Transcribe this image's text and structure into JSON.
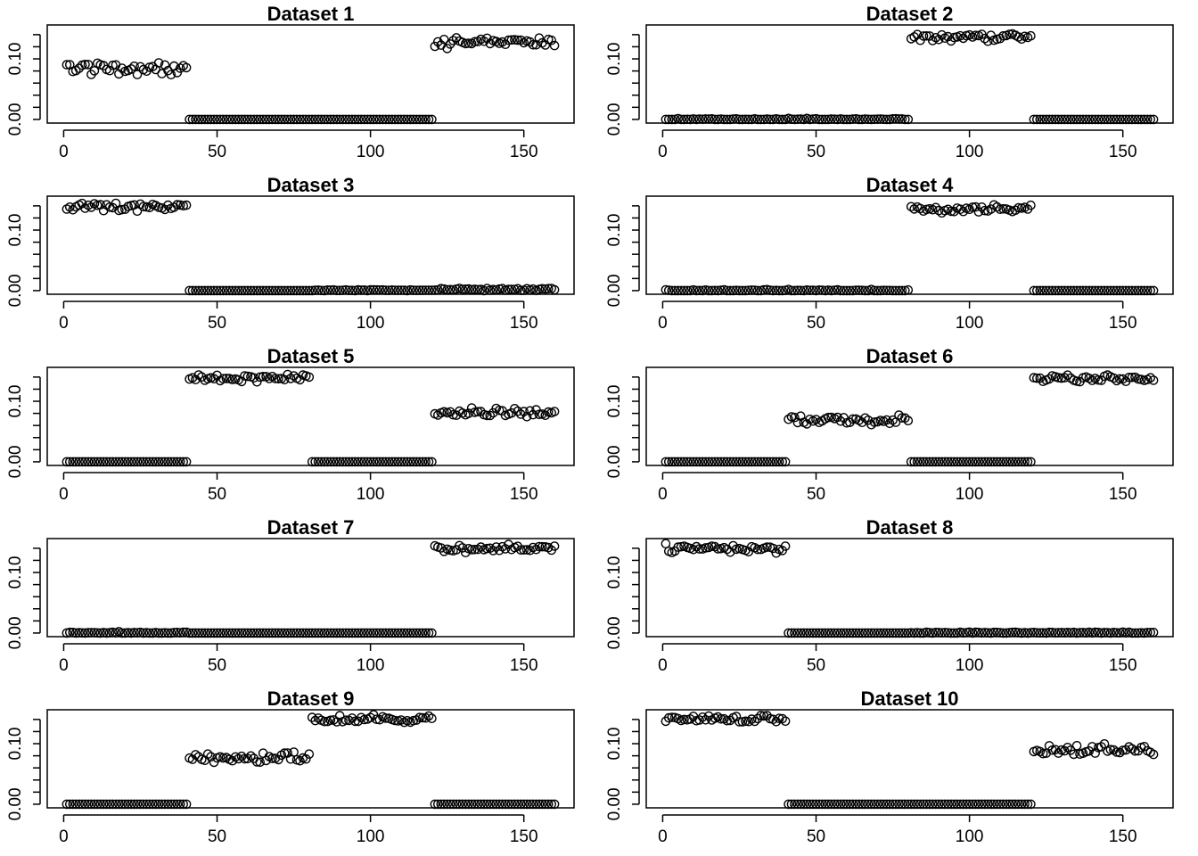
{
  "figure": {
    "background": "#ffffff",
    "marker_color": "#000000"
  },
  "chart_data": [
    {
      "type": "scatter",
      "title": "Dataset 1",
      "x": {
        "from": 1,
        "to": 160
      },
      "xlim": [
        1,
        160
      ],
      "xticks": [
        0,
        50,
        100,
        150
      ],
      "ylim": [
        0,
        0.15
      ],
      "yticks": [
        "0.00",
        "0.10"
      ],
      "segments": [
        {
          "x": [
            1,
            40
          ],
          "y": 0.085,
          "noise": 0.006
        },
        {
          "x": [
            41,
            120
          ],
          "y": 0.0,
          "noise": 0
        },
        {
          "x": [
            121,
            160
          ],
          "y": 0.128,
          "noise": 0.004
        }
      ]
    },
    {
      "type": "scatter",
      "title": "Dataset 2",
      "x": {
        "from": 1,
        "to": 160
      },
      "xlim": [
        1,
        160
      ],
      "xticks": [
        0,
        50,
        100,
        150
      ],
      "ylim": [
        0,
        0.15
      ],
      "yticks": [
        "0.00",
        "0.10"
      ],
      "segments": [
        {
          "x": [
            1,
            80
          ],
          "y": 0.0,
          "noise": 0.0008
        },
        {
          "x": [
            81,
            120
          ],
          "y": 0.136,
          "noise": 0.003
        },
        {
          "x": [
            121,
            160
          ],
          "y": 0.0,
          "noise": 0
        }
      ]
    },
    {
      "type": "scatter",
      "title": "Dataset 3",
      "x": {
        "from": 1,
        "to": 160
      },
      "xlim": [
        1,
        160
      ],
      "xticks": [
        0,
        50,
        100,
        150
      ],
      "ylim": [
        0,
        0.15
      ],
      "yticks": [
        "0.00",
        "0.10"
      ],
      "segments": [
        {
          "x": [
            1,
            40
          ],
          "y": 0.138,
          "noise": 0.003
        },
        {
          "x": [
            41,
            80
          ],
          "y": 0.0,
          "noise": 0
        },
        {
          "x": [
            81,
            120
          ],
          "y": 0.0005,
          "noise": 0.0004
        },
        {
          "x": [
            121,
            160
          ],
          "y": 0.002,
          "noise": 0.0012
        }
      ]
    },
    {
      "type": "scatter",
      "title": "Dataset 4",
      "x": {
        "from": 1,
        "to": 160
      },
      "xlim": [
        1,
        160
      ],
      "xticks": [
        0,
        50,
        100,
        150
      ],
      "ylim": [
        0,
        0.15
      ],
      "yticks": [
        "0.00",
        "0.10"
      ],
      "segments": [
        {
          "x": [
            1,
            80
          ],
          "y": 0.0,
          "noise": 0.0008
        },
        {
          "x": [
            81,
            120
          ],
          "y": 0.136,
          "noise": 0.003
        },
        {
          "x": [
            121,
            160
          ],
          "y": 0.0,
          "noise": 0
        }
      ]
    },
    {
      "type": "scatter",
      "title": "Dataset 5",
      "x": {
        "from": 1,
        "to": 160
      },
      "xlim": [
        1,
        160
      ],
      "xticks": [
        0,
        50,
        100,
        150
      ],
      "ylim": [
        0,
        0.15
      ],
      "yticks": [
        "0.00",
        "0.10"
      ],
      "segments": [
        {
          "x": [
            1,
            40
          ],
          "y": 0.0,
          "noise": 0
        },
        {
          "x": [
            41,
            80
          ],
          "y": 0.138,
          "noise": 0.003
        },
        {
          "x": [
            81,
            120
          ],
          "y": 0.0,
          "noise": 0
        },
        {
          "x": [
            121,
            160
          ],
          "y": 0.082,
          "noise": 0.004
        }
      ]
    },
    {
      "type": "scatter",
      "title": "Dataset 6",
      "x": {
        "from": 1,
        "to": 160
      },
      "xlim": [
        1,
        160
      ],
      "xticks": [
        0,
        50,
        100,
        150
      ],
      "ylim": [
        0,
        0.15
      ],
      "yticks": [
        "0.00",
        "0.10"
      ],
      "segments": [
        {
          "x": [
            1,
            40
          ],
          "y": 0.0,
          "noise": 0
        },
        {
          "x": [
            41,
            80
          ],
          "y": 0.068,
          "noise": 0.004
        },
        {
          "x": [
            81,
            120
          ],
          "y": 0.0,
          "noise": 0
        },
        {
          "x": [
            121,
            160
          ],
          "y": 0.138,
          "noise": 0.003
        }
      ]
    },
    {
      "type": "scatter",
      "title": "Dataset 7",
      "x": {
        "from": 1,
        "to": 160
      },
      "xlim": [
        1,
        160
      ],
      "xticks": [
        0,
        50,
        100,
        150
      ],
      "ylim": [
        0,
        0.15
      ],
      "yticks": [
        "0.00",
        "0.10"
      ],
      "segments": [
        {
          "x": [
            1,
            40
          ],
          "y": 0.0005,
          "noise": 0.0007
        },
        {
          "x": [
            41,
            120
          ],
          "y": 0.0,
          "noise": 0
        },
        {
          "x": [
            121,
            160
          ],
          "y": 0.139,
          "noise": 0.003
        }
      ]
    },
    {
      "type": "scatter",
      "title": "Dataset 8",
      "x": {
        "from": 1,
        "to": 160
      },
      "xlim": [
        1,
        160
      ],
      "xticks": [
        0,
        50,
        100,
        150
      ],
      "ylim": [
        0,
        0.15
      ],
      "yticks": [
        "0.00",
        "0.10"
      ],
      "segments": [
        {
          "x": [
            1,
            40
          ],
          "y": 0.14,
          "noise": 0.003
        },
        {
          "x": [
            41,
            80
          ],
          "y": 0.0,
          "noise": 0
        },
        {
          "x": [
            81,
            160
          ],
          "y": 0.0004,
          "noise": 0.0005
        }
      ]
    },
    {
      "type": "scatter",
      "title": "Dataset 9",
      "x": {
        "from": 1,
        "to": 160
      },
      "xlim": [
        1,
        160
      ],
      "xticks": [
        0,
        50,
        100,
        150
      ],
      "ylim": [
        0,
        0.15
      ],
      "yticks": [
        "0.00",
        "0.10"
      ],
      "segments": [
        {
          "x": [
            1,
            40
          ],
          "y": 0.0,
          "noise": 0
        },
        {
          "x": [
            41,
            80
          ],
          "y": 0.077,
          "noise": 0.004
        },
        {
          "x": [
            81,
            120
          ],
          "y": 0.14,
          "noise": 0.003
        },
        {
          "x": [
            121,
            160
          ],
          "y": 0.0,
          "noise": 0
        }
      ]
    },
    {
      "type": "scatter",
      "title": "Dataset 10",
      "x": {
        "from": 1,
        "to": 160
      },
      "xlim": [
        1,
        160
      ],
      "xticks": [
        0,
        50,
        100,
        150
      ],
      "ylim": [
        0,
        0.15
      ],
      "yticks": [
        "0.00",
        "0.10"
      ],
      "segments": [
        {
          "x": [
            1,
            40
          ],
          "y": 0.14,
          "noise": 0.003
        },
        {
          "x": [
            41,
            120
          ],
          "y": 0.0,
          "noise": 0
        },
        {
          "x": [
            121,
            160
          ],
          "y": 0.09,
          "noise": 0.004
        }
      ]
    }
  ]
}
